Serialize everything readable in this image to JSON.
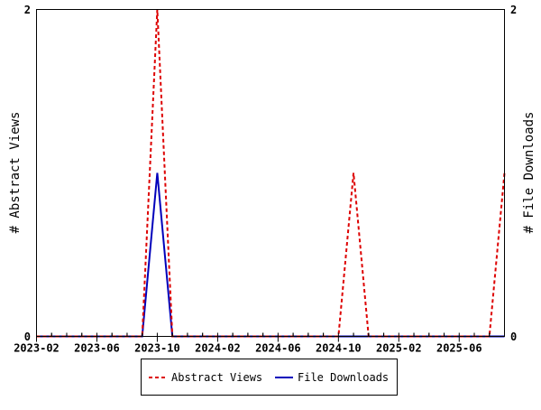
{
  "chart_data": {
    "type": "line",
    "x": [
      "2023-02",
      "2023-03",
      "2023-04",
      "2023-05",
      "2023-06",
      "2023-07",
      "2023-08",
      "2023-09",
      "2023-10",
      "2023-11",
      "2023-12",
      "2024-01",
      "2024-02",
      "2024-03",
      "2024-04",
      "2024-05",
      "2024-06",
      "2024-07",
      "2024-08",
      "2024-09",
      "2024-10",
      "2024-11",
      "2024-12",
      "2025-01",
      "2025-02",
      "2025-03",
      "2025-04",
      "2025-05",
      "2025-06",
      "2025-07",
      "2025-08",
      "2025-09"
    ],
    "x_tick_labels": [
      "2023-02",
      "2023-06",
      "2023-10",
      "2024-02",
      "2024-06",
      "2024-10",
      "2025-02",
      "2025-06"
    ],
    "ylabel": "# Abstract Views",
    "y2label": "# File Downloads",
    "ylim": [
      0,
      2
    ],
    "y2lim": [
      0,
      2
    ],
    "y_tick_labels": [
      "0",
      "2"
    ],
    "y2_tick_labels": [
      "0",
      "2"
    ],
    "legend_position": "bottom",
    "grid": false,
    "series": [
      {
        "name": "Abstract Views",
        "axis": "left",
        "color": "#dd0000",
        "style": "dashed",
        "values": [
          0,
          0,
          0,
          0,
          0,
          0,
          0,
          0,
          2,
          0,
          0,
          0,
          0,
          0,
          0,
          0,
          0,
          0,
          0,
          0,
          0,
          1,
          0,
          0,
          0,
          0,
          0,
          0,
          0,
          0,
          0,
          1
        ]
      },
      {
        "name": "File Downloads",
        "axis": "right",
        "color": "#0000bb",
        "style": "solid",
        "values": [
          0,
          0,
          0,
          0,
          0,
          0,
          0,
          0,
          1,
          0,
          0,
          0,
          0,
          0,
          0,
          0,
          0,
          0,
          0,
          0,
          0,
          0,
          0,
          0,
          0,
          0,
          0,
          0,
          0,
          0,
          0,
          0
        ]
      }
    ]
  }
}
